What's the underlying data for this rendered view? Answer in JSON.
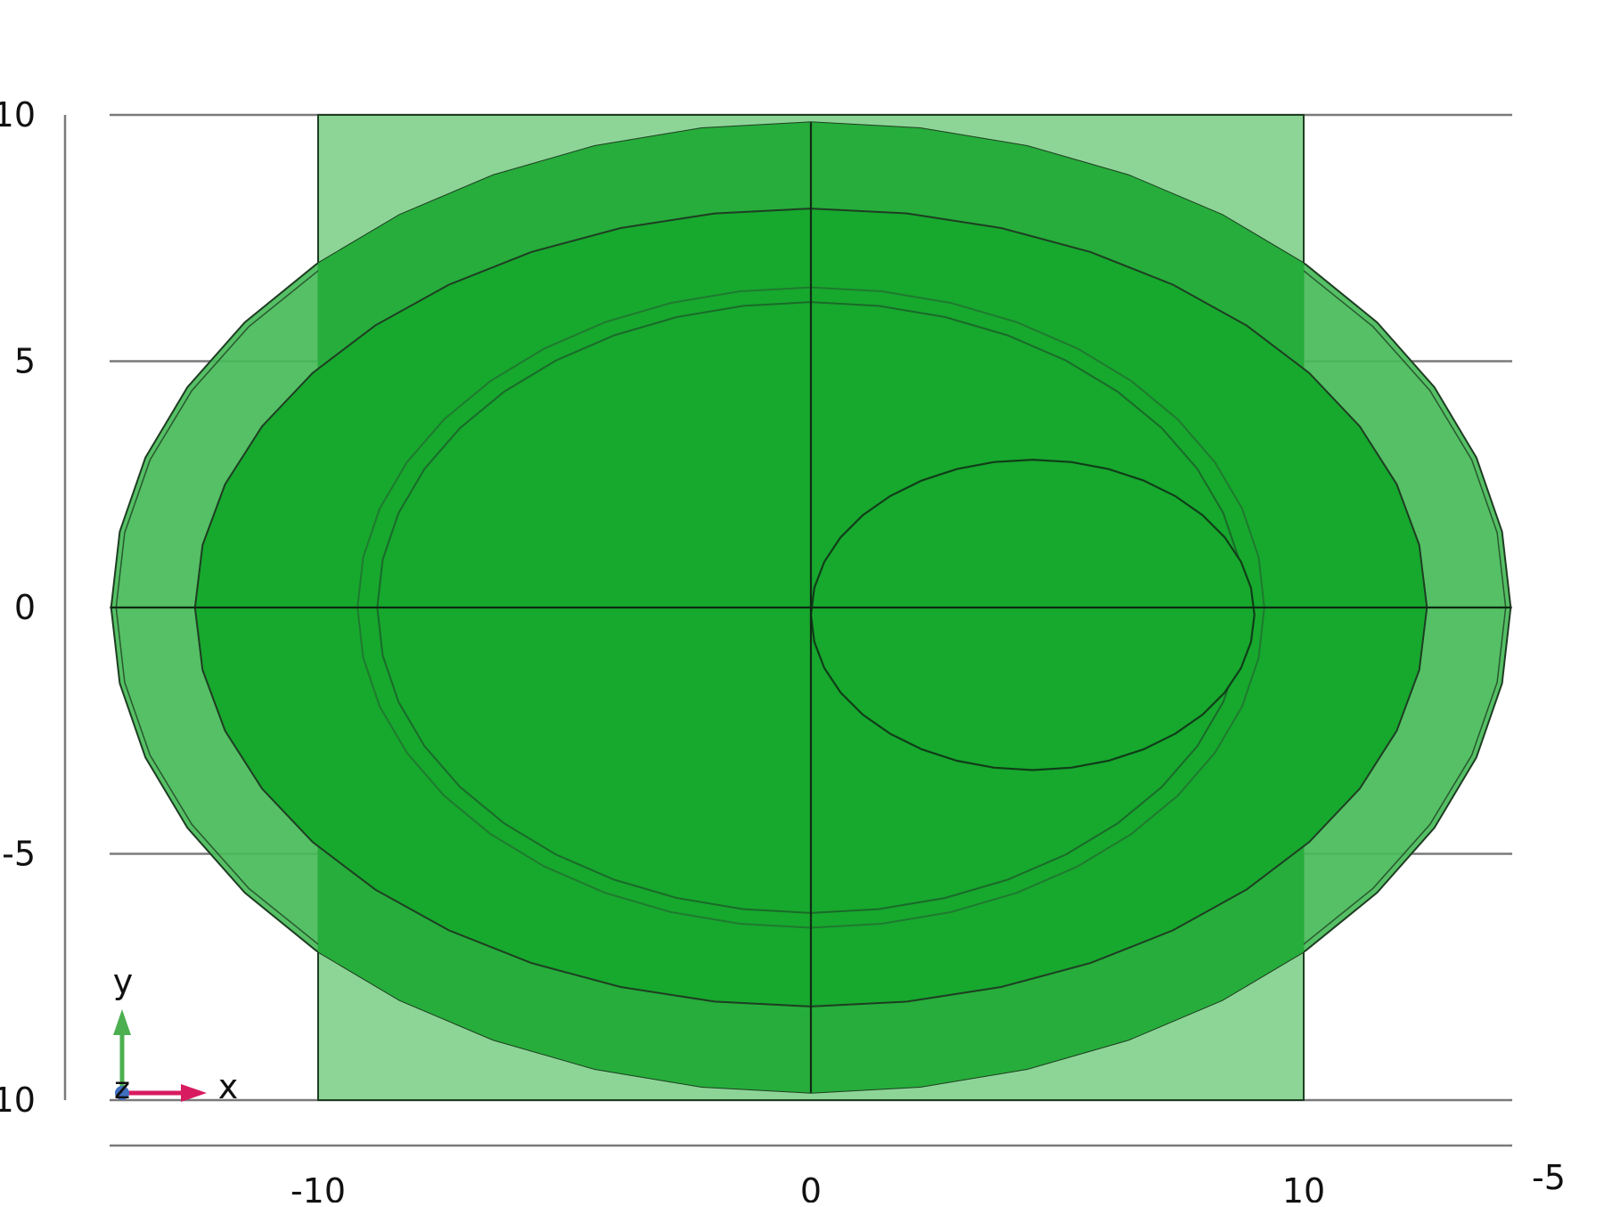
{
  "x_axis": {
    "ticks": [
      {
        "value": -10,
        "label": "-10"
      },
      {
        "value": 0,
        "label": "0"
      },
      {
        "value": 10,
        "label": "10"
      }
    ],
    "corner_label": "-5"
  },
  "y_axis": {
    "ticks": [
      {
        "value": 10,
        "label": "10"
      },
      {
        "value": 5,
        "label": "5"
      },
      {
        "value": 0,
        "label": "0"
      },
      {
        "value": -5,
        "label": "-5"
      },
      {
        "value": -10,
        "label": "-10"
      }
    ]
  },
  "triad": {
    "x_label": "x",
    "y_label": "y",
    "z_label": "z",
    "x_color": "#d81b60",
    "y_color": "#4caf50",
    "z_color": "#3f6fbf"
  },
  "geometry": {
    "rectangle": {
      "x_min": -10,
      "x_max": 10,
      "y_min": -10,
      "y_max": 10
    },
    "outer_ellipse": {
      "cx": 0,
      "cy": 0,
      "rx": 14.2,
      "ry": 9.85
    },
    "ring_ellipse": {
      "cx": 0,
      "cy": 0,
      "rx": 12.5,
      "ry": 8.1
    },
    "inner_ellipse_outer": {
      "cx": 0,
      "cy": 0,
      "rx": 9.2,
      "ry": 6.5
    },
    "inner_ellipse": {
      "cx": 0,
      "cy": 0,
      "rx": 8.8,
      "ry": 6.2
    },
    "small_ellipse": {
      "cx": 4.5,
      "cy": -0.15,
      "rx": 4.5,
      "ry": 3.15
    },
    "colors": {
      "rect_fill": "#86d390",
      "outer_fill": "#47bb58",
      "ring_fill": "#26ad3b",
      "inner_fill": "#17a82e",
      "edge": "#1e3d22",
      "grid": "#7a7a7a"
    }
  }
}
